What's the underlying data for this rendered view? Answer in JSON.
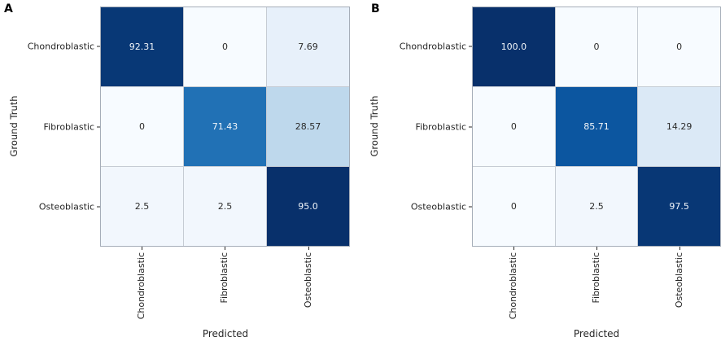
{
  "colors": {
    "background": "#ffffff",
    "grid_line": "#c6ccd4",
    "axis_border": "#a6aeb9",
    "tick": "#262626",
    "dark_text": "#2b2b2b",
    "light_text": "#f2f6fa",
    "colormap": "Blues",
    "colormap_low": "#f7fbff",
    "colormap_high": "#08306b"
  },
  "panels": [
    {
      "label": "A",
      "xlabel": "Predicted",
      "ylabel": "Ground Truth",
      "row_labels": [
        "Chondroblastic",
        "Fibroblastic",
        "Osteoblastic"
      ],
      "col_labels": [
        "Chondroblastic",
        "Fibroblastic",
        "Osteoblastic"
      ],
      "cells": [
        {
          "text": "92.31",
          "bg": "#083876",
          "fg": "light"
        },
        {
          "text": "0",
          "bg": "#f7fbff",
          "fg": "dark"
        },
        {
          "text": "7.69",
          "bg": "#e7f0fa",
          "fg": "dark"
        },
        {
          "text": "0",
          "bg": "#f7fbff",
          "fg": "dark"
        },
        {
          "text": "71.43",
          "bg": "#2171b5",
          "fg": "light"
        },
        {
          "text": "28.57",
          "bg": "#bed8ec",
          "fg": "dark"
        },
        {
          "text": "2.5",
          "bg": "#f2f7fd",
          "fg": "dark"
        },
        {
          "text": "2.5",
          "bg": "#f2f7fd",
          "fg": "dark"
        },
        {
          "text": "95.0",
          "bg": "#08306b",
          "fg": "light"
        }
      ]
    },
    {
      "label": "B",
      "xlabel": "Predicted",
      "ylabel": "Ground Truth",
      "row_labels": [
        "Chondroblastic",
        "Fibroblastic",
        "Osteoblastic"
      ],
      "col_labels": [
        "Chondroblastic",
        "Fibroblastic",
        "Osteoblastic"
      ],
      "cells": [
        {
          "text": "100.0",
          "bg": "#08306b",
          "fg": "light"
        },
        {
          "text": "0",
          "bg": "#f7fbff",
          "fg": "dark"
        },
        {
          "text": "0",
          "bg": "#f7fbff",
          "fg": "dark"
        },
        {
          "text": "0",
          "bg": "#f7fbff",
          "fg": "dark"
        },
        {
          "text": "85.71",
          "bg": "#0c56a0",
          "fg": "light"
        },
        {
          "text": "14.29",
          "bg": "#dbe9f6",
          "fg": "dark"
        },
        {
          "text": "0",
          "bg": "#f7fbff",
          "fg": "dark"
        },
        {
          "text": "2.5",
          "bg": "#f2f7fd",
          "fg": "dark"
        },
        {
          "text": "97.5",
          "bg": "#083775",
          "fg": "light"
        }
      ]
    }
  ],
  "chart_data": [
    {
      "type": "heatmap",
      "panel": "A",
      "title": "A",
      "xlabel": "Predicted",
      "ylabel": "Ground Truth",
      "x_categories": [
        "Chondroblastic",
        "Fibroblastic",
        "Osteoblastic"
      ],
      "y_categories": [
        "Chondroblastic",
        "Fibroblastic",
        "Osteoblastic"
      ],
      "values": [
        [
          92.31,
          0,
          7.69
        ],
        [
          0,
          71.43,
          28.57
        ],
        [
          2.5,
          2.5,
          95.0
        ]
      ],
      "value_unit": "percent",
      "colormap": "Blues",
      "color_range": [
        0,
        95.0
      ],
      "legend": "none",
      "grid": "cell-borders"
    },
    {
      "type": "heatmap",
      "panel": "B",
      "title": "B",
      "xlabel": "Predicted",
      "ylabel": "Ground Truth",
      "x_categories": [
        "Chondroblastic",
        "Fibroblastic",
        "Osteoblastic"
      ],
      "y_categories": [
        "Chondroblastic",
        "Fibroblastic",
        "Osteoblastic"
      ],
      "values": [
        [
          100.0,
          0,
          0
        ],
        [
          0,
          85.71,
          14.29
        ],
        [
          0,
          2.5,
          97.5
        ]
      ],
      "value_unit": "percent",
      "colormap": "Blues",
      "color_range": [
        0,
        100.0
      ],
      "legend": "none",
      "grid": "cell-borders"
    }
  ]
}
